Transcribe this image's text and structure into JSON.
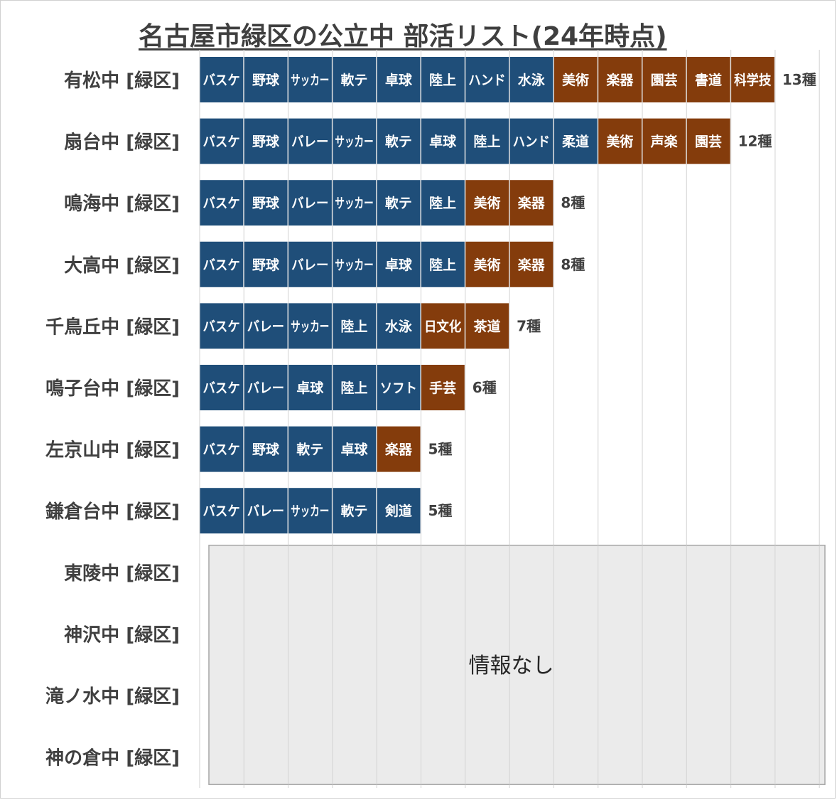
{
  "title": "名古屋市緑区の公立中 部活リスト(24年時点)",
  "colors": {
    "sport": "#1f4e79",
    "culture": "#843c0c",
    "grid": "#d9d9d9",
    "noinfo_fill": "#ebebeb",
    "noinfo_border": "#a6a6a6",
    "label": "#404040"
  },
  "chart_data": {
    "type": "bar",
    "stacked": true,
    "orientation": "horizontal",
    "title": "名古屋市緑区の公立中 部活リスト(24年時点)",
    "xlim": [
      0,
      14
    ],
    "grid": true,
    "categories": [
      "有松中 [緑区]",
      "扇台中 [緑区]",
      "鳴海中 [緑区]",
      "大高中 [緑区]",
      "千鳥丘中 [緑区]",
      "鳴子台中 [緑区]",
      "左京山中 [緑区]",
      "鎌倉台中 [緑区]",
      "東陵中 [緑区]",
      "神沢中 [緑区]",
      "滝ノ水中 [緑区]",
      "神の倉中 [緑区]"
    ],
    "rows": [
      {
        "clubs": [
          {
            "name": "バスケ",
            "kind": "sport"
          },
          {
            "name": "野球",
            "kind": "sport"
          },
          {
            "name": "サッカー",
            "kind": "sport"
          },
          {
            "name": "軟テ",
            "kind": "sport"
          },
          {
            "name": "卓球",
            "kind": "sport"
          },
          {
            "name": "陸上",
            "kind": "sport"
          },
          {
            "name": "ハンド",
            "kind": "sport"
          },
          {
            "name": "水泳",
            "kind": "sport"
          },
          {
            "name": "美術",
            "kind": "culture"
          },
          {
            "name": "楽器",
            "kind": "culture"
          },
          {
            "name": "園芸",
            "kind": "culture"
          },
          {
            "name": "書道",
            "kind": "culture"
          },
          {
            "name": "科学技",
            "kind": "culture"
          }
        ],
        "count": 13,
        "count_label": "13種"
      },
      {
        "clubs": [
          {
            "name": "バスケ",
            "kind": "sport"
          },
          {
            "name": "野球",
            "kind": "sport"
          },
          {
            "name": "バレー",
            "kind": "sport"
          },
          {
            "name": "サッカー",
            "kind": "sport"
          },
          {
            "name": "軟テ",
            "kind": "sport"
          },
          {
            "name": "卓球",
            "kind": "sport"
          },
          {
            "name": "陸上",
            "kind": "sport"
          },
          {
            "name": "ハンド",
            "kind": "sport"
          },
          {
            "name": "柔道",
            "kind": "sport"
          },
          {
            "name": "美術",
            "kind": "culture"
          },
          {
            "name": "声楽",
            "kind": "culture"
          },
          {
            "name": "園芸",
            "kind": "culture"
          }
        ],
        "count": 12,
        "count_label": "12種"
      },
      {
        "clubs": [
          {
            "name": "バスケ",
            "kind": "sport"
          },
          {
            "name": "野球",
            "kind": "sport"
          },
          {
            "name": "バレー",
            "kind": "sport"
          },
          {
            "name": "サッカー",
            "kind": "sport"
          },
          {
            "name": "軟テ",
            "kind": "sport"
          },
          {
            "name": "陸上",
            "kind": "sport"
          },
          {
            "name": "美術",
            "kind": "culture"
          },
          {
            "name": "楽器",
            "kind": "culture"
          }
        ],
        "count": 8,
        "count_label": "8種"
      },
      {
        "clubs": [
          {
            "name": "バスケ",
            "kind": "sport"
          },
          {
            "name": "野球",
            "kind": "sport"
          },
          {
            "name": "バレー",
            "kind": "sport"
          },
          {
            "name": "サッカー",
            "kind": "sport"
          },
          {
            "name": "卓球",
            "kind": "sport"
          },
          {
            "name": "陸上",
            "kind": "sport"
          },
          {
            "name": "美術",
            "kind": "culture"
          },
          {
            "name": "楽器",
            "kind": "culture"
          }
        ],
        "count": 8,
        "count_label": "8種"
      },
      {
        "clubs": [
          {
            "name": "バスケ",
            "kind": "sport"
          },
          {
            "name": "バレー",
            "kind": "sport"
          },
          {
            "name": "サッカー",
            "kind": "sport"
          },
          {
            "name": "陸上",
            "kind": "sport"
          },
          {
            "name": "水泳",
            "kind": "sport"
          },
          {
            "name": "日文化",
            "kind": "culture"
          },
          {
            "name": "茶道",
            "kind": "culture"
          }
        ],
        "count": 7,
        "count_label": "7種"
      },
      {
        "clubs": [
          {
            "name": "バスケ",
            "kind": "sport"
          },
          {
            "name": "バレー",
            "kind": "sport"
          },
          {
            "name": "卓球",
            "kind": "sport"
          },
          {
            "name": "陸上",
            "kind": "sport"
          },
          {
            "name": "ソフト",
            "kind": "sport"
          },
          {
            "name": "手芸",
            "kind": "culture"
          }
        ],
        "count": 6,
        "count_label": "6種"
      },
      {
        "clubs": [
          {
            "name": "バスケ",
            "kind": "sport"
          },
          {
            "name": "野球",
            "kind": "sport"
          },
          {
            "name": "軟テ",
            "kind": "sport"
          },
          {
            "name": "卓球",
            "kind": "sport"
          },
          {
            "name": "楽器",
            "kind": "culture"
          }
        ],
        "count": 5,
        "count_label": "5種"
      },
      {
        "clubs": [
          {
            "name": "バスケ",
            "kind": "sport"
          },
          {
            "name": "バレー",
            "kind": "sport"
          },
          {
            "name": "サッカー",
            "kind": "sport"
          },
          {
            "name": "軟テ",
            "kind": "sport"
          },
          {
            "name": "剣道",
            "kind": "sport"
          }
        ],
        "count": 5,
        "count_label": "5種"
      },
      {
        "clubs": [],
        "count": null,
        "count_label": ""
      },
      {
        "clubs": [],
        "count": null,
        "count_label": ""
      },
      {
        "clubs": [],
        "count": null,
        "count_label": ""
      },
      {
        "clubs": [],
        "count": null,
        "count_label": ""
      }
    ],
    "no_info": {
      "label": "情報なし",
      "rows": [
        "東陵中 [緑区]",
        "神沢中 [緑区]",
        "滝ノ水中 [緑区]",
        "神の倉中 [緑区]"
      ]
    }
  }
}
